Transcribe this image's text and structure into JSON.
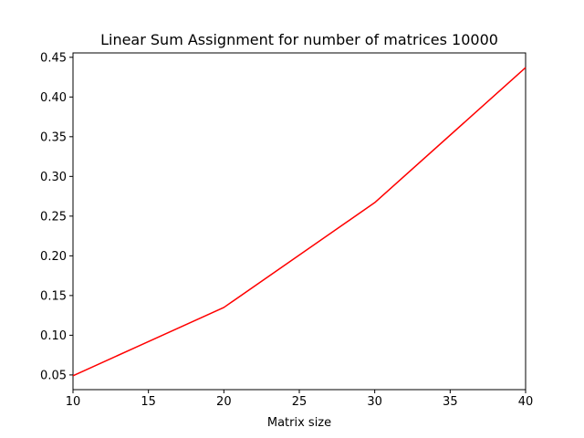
{
  "chart_data": {
    "type": "line",
    "title": "Linear Sum Assignment for number of matrices 10000",
    "xlabel": "Matrix size",
    "ylabel": "",
    "xlim": [
      10,
      40
    ],
    "ylim": [
      0.0315,
      0.4555
    ],
    "x_ticks": [
      10,
      15,
      20,
      25,
      30,
      35,
      40
    ],
    "y_ticks": [
      0.05,
      0.1,
      0.15,
      0.2,
      0.25,
      0.3,
      0.35,
      0.4,
      0.45
    ],
    "grid": false,
    "series": [
      {
        "color": "#ff0000",
        "x": [
          10,
          20,
          30,
          40
        ],
        "y": [
          0.049,
          0.135,
          0.267,
          0.437
        ]
      }
    ]
  }
}
